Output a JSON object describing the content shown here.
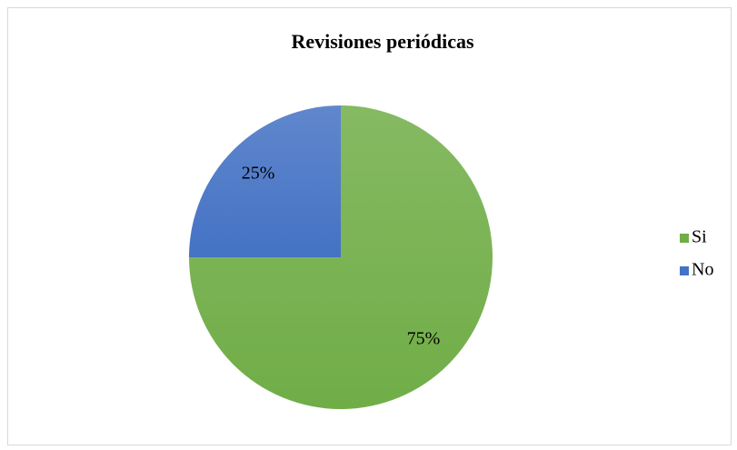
{
  "chart_data": {
    "type": "pie",
    "title": "Revisiones periódicas",
    "categories": [
      "Si",
      "No"
    ],
    "values": [
      75,
      25
    ],
    "value_labels": [
      "75%",
      "25%"
    ],
    "colors": [
      "#70ad47",
      "#4472c4"
    ],
    "legend": "right"
  }
}
